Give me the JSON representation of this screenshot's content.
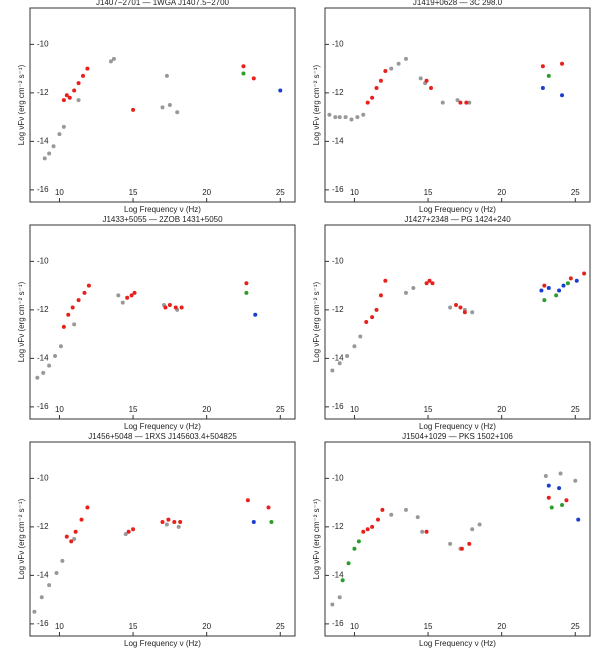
{
  "chart_data": [
    {
      "type": "scatter",
      "title": "J1407−2701 — 1WGA J1407.5−2700",
      "xlabel": "Log Frequency ν (Hz)",
      "ylabel": "Log νFν (erg cm⁻² s⁻¹)",
      "xlim": [
        8,
        26
      ],
      "ylim": [
        -16.5,
        -8.5
      ],
      "xticks": [
        10,
        15,
        20,
        25
      ],
      "yticks": [
        -10,
        -12,
        -14,
        -16
      ],
      "series": [
        {
          "color": "#999999",
          "x": [
            9,
            9.3,
            9.6,
            10,
            10.3,
            11.3,
            13.5,
            13.7,
            17.3,
            17,
            17.5,
            18
          ],
          "values": [
            -14.7,
            -14.5,
            -14.2,
            -13.7,
            -13.4,
            -12.3,
            -10.7,
            -10.6,
            -11.3,
            -12.6,
            -12.5,
            -12.8
          ]
        },
        {
          "color": "#e8201a",
          "x": [
            10.3,
            10.5,
            10.7,
            11,
            11.3,
            11.6,
            11.9,
            15,
            22.5,
            23.2
          ],
          "values": [
            -12.3,
            -12.1,
            -12.2,
            -11.9,
            -11.6,
            -11.3,
            -11,
            -12.7,
            -10.9,
            -11.4
          ]
        },
        {
          "color": "#2a9d2a",
          "x": [
            22.5
          ],
          "values": [
            -11.2
          ]
        },
        {
          "color": "#1a3fd0",
          "x": [
            25
          ],
          "values": [
            -11.9
          ]
        }
      ]
    },
    {
      "type": "scatter",
      "title": "J1419+0628 — 3C 298.0",
      "xlabel": "Log Frequency ν (Hz)",
      "ylabel": "Log νFν (erg cm⁻² s⁻¹)",
      "xlim": [
        8,
        26
      ],
      "ylim": [
        -16.5,
        -8.5
      ],
      "xticks": [
        10,
        15,
        20,
        25
      ],
      "yticks": [
        -10,
        -12,
        -14,
        -16
      ],
      "series": [
        {
          "color": "#999999",
          "x": [
            8.3,
            8.7,
            9,
            9.4,
            9.8,
            10.2,
            10.6,
            12.5,
            13,
            13.5,
            14.5,
            14.8,
            16,
            17,
            17.8
          ],
          "values": [
            -12.9,
            -13,
            -13,
            -13,
            -13.1,
            -13,
            -12.9,
            -11,
            -10.8,
            -10.6,
            -11.4,
            -11.6,
            -12.4,
            -12.3,
            -12.4
          ]
        },
        {
          "color": "#e8201a",
          "x": [
            10.9,
            11.2,
            11.5,
            11.8,
            12.1,
            14.9,
            15.2,
            17.2,
            17.6,
            22.8,
            24.1
          ],
          "values": [
            -12.4,
            -12.2,
            -11.8,
            -11.5,
            -11.1,
            -11.5,
            -11.8,
            -12.4,
            -12.4,
            -10.9,
            -10.8
          ]
        },
        {
          "color": "#2a9d2a",
          "x": [
            23.2
          ],
          "values": [
            -11.3
          ]
        },
        {
          "color": "#1a3fd0",
          "x": [
            22.8,
            24.1
          ],
          "values": [
            -11.8,
            -12.1
          ]
        }
      ]
    },
    {
      "type": "scatter",
      "title": "J1433+5055 — 2ZOB 1431+5050",
      "xlabel": "Log Frequency ν (Hz)",
      "ylabel": "Log νFν (erg cm⁻² s⁻¹)",
      "xlim": [
        8,
        26
      ],
      "ylim": [
        -16.5,
        -8.5
      ],
      "xticks": [
        10,
        15,
        20,
        25
      ],
      "yticks": [
        -10,
        -12,
        -14,
        -16
      ],
      "series": [
        {
          "color": "#999999",
          "x": [
            8.5,
            8.9,
            9.3,
            9.7,
            10.1,
            11,
            14,
            14.3,
            17.1,
            18
          ],
          "values": [
            -14.8,
            -14.6,
            -14.3,
            -13.9,
            -13.5,
            -12.6,
            -11.4,
            -11.7,
            -11.8,
            -12
          ]
        },
        {
          "color": "#e8201a",
          "x": [
            10.3,
            10.6,
            10.9,
            11.3,
            11.7,
            12,
            14.6,
            14.9,
            15.1,
            17.2,
            17.5,
            17.9,
            18.3,
            22.7
          ],
          "values": [
            -12.7,
            -12.2,
            -11.9,
            -11.6,
            -11.3,
            -11,
            -11.5,
            -11.4,
            -11.3,
            -11.9,
            -11.8,
            -11.9,
            -11.9,
            -10.9
          ]
        },
        {
          "color": "#2a9d2a",
          "x": [
            22.7
          ],
          "values": [
            -11.3
          ]
        },
        {
          "color": "#1a3fd0",
          "x": [
            23.3
          ],
          "values": [
            -12.2
          ]
        }
      ]
    },
    {
      "type": "scatter",
      "title": "J1427+2348 — PG 1424+240",
      "xlabel": "Log Frequency ν (Hz)",
      "ylabel": "Log νFν (erg cm⁻² s⁻¹)",
      "xlim": [
        8,
        26
      ],
      "ylim": [
        -16.5,
        -8.5
      ],
      "xticks": [
        10,
        15,
        20,
        25
      ],
      "yticks": [
        -10,
        -12,
        -14,
        -16
      ],
      "series": [
        {
          "color": "#999999",
          "x": [
            8.5,
            9,
            9.5,
            10,
            10.4,
            13.5,
            14,
            16.5,
            17.5,
            18
          ],
          "values": [
            -14.5,
            -14.2,
            -13.9,
            -13.5,
            -13.1,
            -11.3,
            -11.1,
            -11.9,
            -12,
            -12.1
          ]
        },
        {
          "color": "#e8201a",
          "x": [
            10.8,
            11.2,
            11.5,
            11.8,
            12.1,
            14.9,
            15.1,
            15.3,
            16.9,
            17.2,
            17.5,
            22.9,
            24.7,
            25.6
          ],
          "values": [
            -12.5,
            -12.3,
            -12,
            -11.4,
            -10.8,
            -10.9,
            -10.8,
            -10.9,
            -11.8,
            -11.9,
            -12.1,
            -11,
            -10.7,
            -10.5
          ]
        },
        {
          "color": "#2a9d2a",
          "x": [
            22.9,
            23.7,
            24.5
          ],
          "values": [
            -11.6,
            -11.4,
            -10.9
          ]
        },
        {
          "color": "#1a3fd0",
          "x": [
            22.7,
            23.2,
            23.9,
            24.2,
            25.1
          ],
          "values": [
            -11.2,
            -11.1,
            -11.2,
            -11,
            -10.8
          ]
        }
      ]
    },
    {
      "type": "scatter",
      "title": "J1456+5048 — 1RXS J145603.4+504825",
      "xlabel": "Log Frequency ν (Hz)",
      "ylabel": "Log νFν (erg cm⁻² s⁻¹)",
      "xlim": [
        8,
        26
      ],
      "ylim": [
        -16.5,
        -8.5
      ],
      "xticks": [
        10,
        15,
        20,
        25
      ],
      "yticks": [
        -10,
        -12,
        -14,
        -16
      ],
      "series": [
        {
          "color": "#999999",
          "x": [
            8.3,
            8.8,
            9.3,
            9.8,
            10.2,
            11,
            14.5,
            17.3,
            18.1
          ],
          "values": [
            -15.5,
            -14.9,
            -14.4,
            -13.9,
            -13.4,
            -12.5,
            -12.3,
            -11.9,
            -12
          ]
        },
        {
          "color": "#e8201a",
          "x": [
            10.5,
            10.8,
            11.1,
            11.5,
            11.9,
            14.7,
            15,
            17,
            17.4,
            17.8,
            18.2,
            22.8,
            24.2
          ],
          "values": [
            -12.4,
            -12.6,
            -12.2,
            -11.7,
            -11.2,
            -12.2,
            -12.1,
            -11.8,
            -11.7,
            -11.8,
            -11.8,
            -10.9,
            -11.2
          ]
        },
        {
          "color": "#2a9d2a",
          "x": [
            24.4
          ],
          "values": [
            -11.8
          ]
        },
        {
          "color": "#1a3fd0",
          "x": [
            23.2
          ],
          "values": [
            -11.8
          ]
        }
      ]
    },
    {
      "type": "scatter",
      "title": "J1504+1029 — PKS 1502+106",
      "xlabel": "Log Frequency ν (Hz)",
      "ylabel": "Log νFν (erg cm⁻² s⁻¹)",
      "xlim": [
        8,
        26
      ],
      "ylim": [
        -16.5,
        -8.5
      ],
      "xticks": [
        10,
        15,
        20,
        25
      ],
      "yticks": [
        -10,
        -12,
        -14,
        -16
      ],
      "series": [
        {
          "color": "#999999",
          "x": [
            8.5,
            9,
            12.5,
            13.5,
            14.3,
            14.6,
            16.5,
            17.2,
            18,
            18.5,
            23,
            24,
            25
          ],
          "values": [
            -15.2,
            -14.9,
            -11.5,
            -11.3,
            -11.6,
            -12.2,
            -12.7,
            -12.9,
            -12.1,
            -11.9,
            -9.9,
            -9.8,
            -10.1
          ]
        },
        {
          "color": "#e8201a",
          "x": [
            10.6,
            10.9,
            11.2,
            11.6,
            11.9,
            14.9,
            17.3,
            17.8,
            23.2,
            24.4
          ],
          "values": [
            -12.2,
            -12.1,
            -12,
            -11.7,
            -11.3,
            -12.2,
            -12.9,
            -12.7,
            -10.8,
            -10.9
          ]
        },
        {
          "color": "#2a9d2a",
          "x": [
            9.2,
            9.6,
            10,
            10.3,
            23.4,
            24.1
          ],
          "values": [
            -14.2,
            -13.5,
            -12.9,
            -12.6,
            -11.2,
            -11.1
          ]
        },
        {
          "color": "#1a3fd0",
          "x": [
            23.2,
            23.9,
            25.2
          ],
          "values": [
            -10.3,
            -10.4,
            -11.7
          ]
        }
      ]
    }
  ]
}
